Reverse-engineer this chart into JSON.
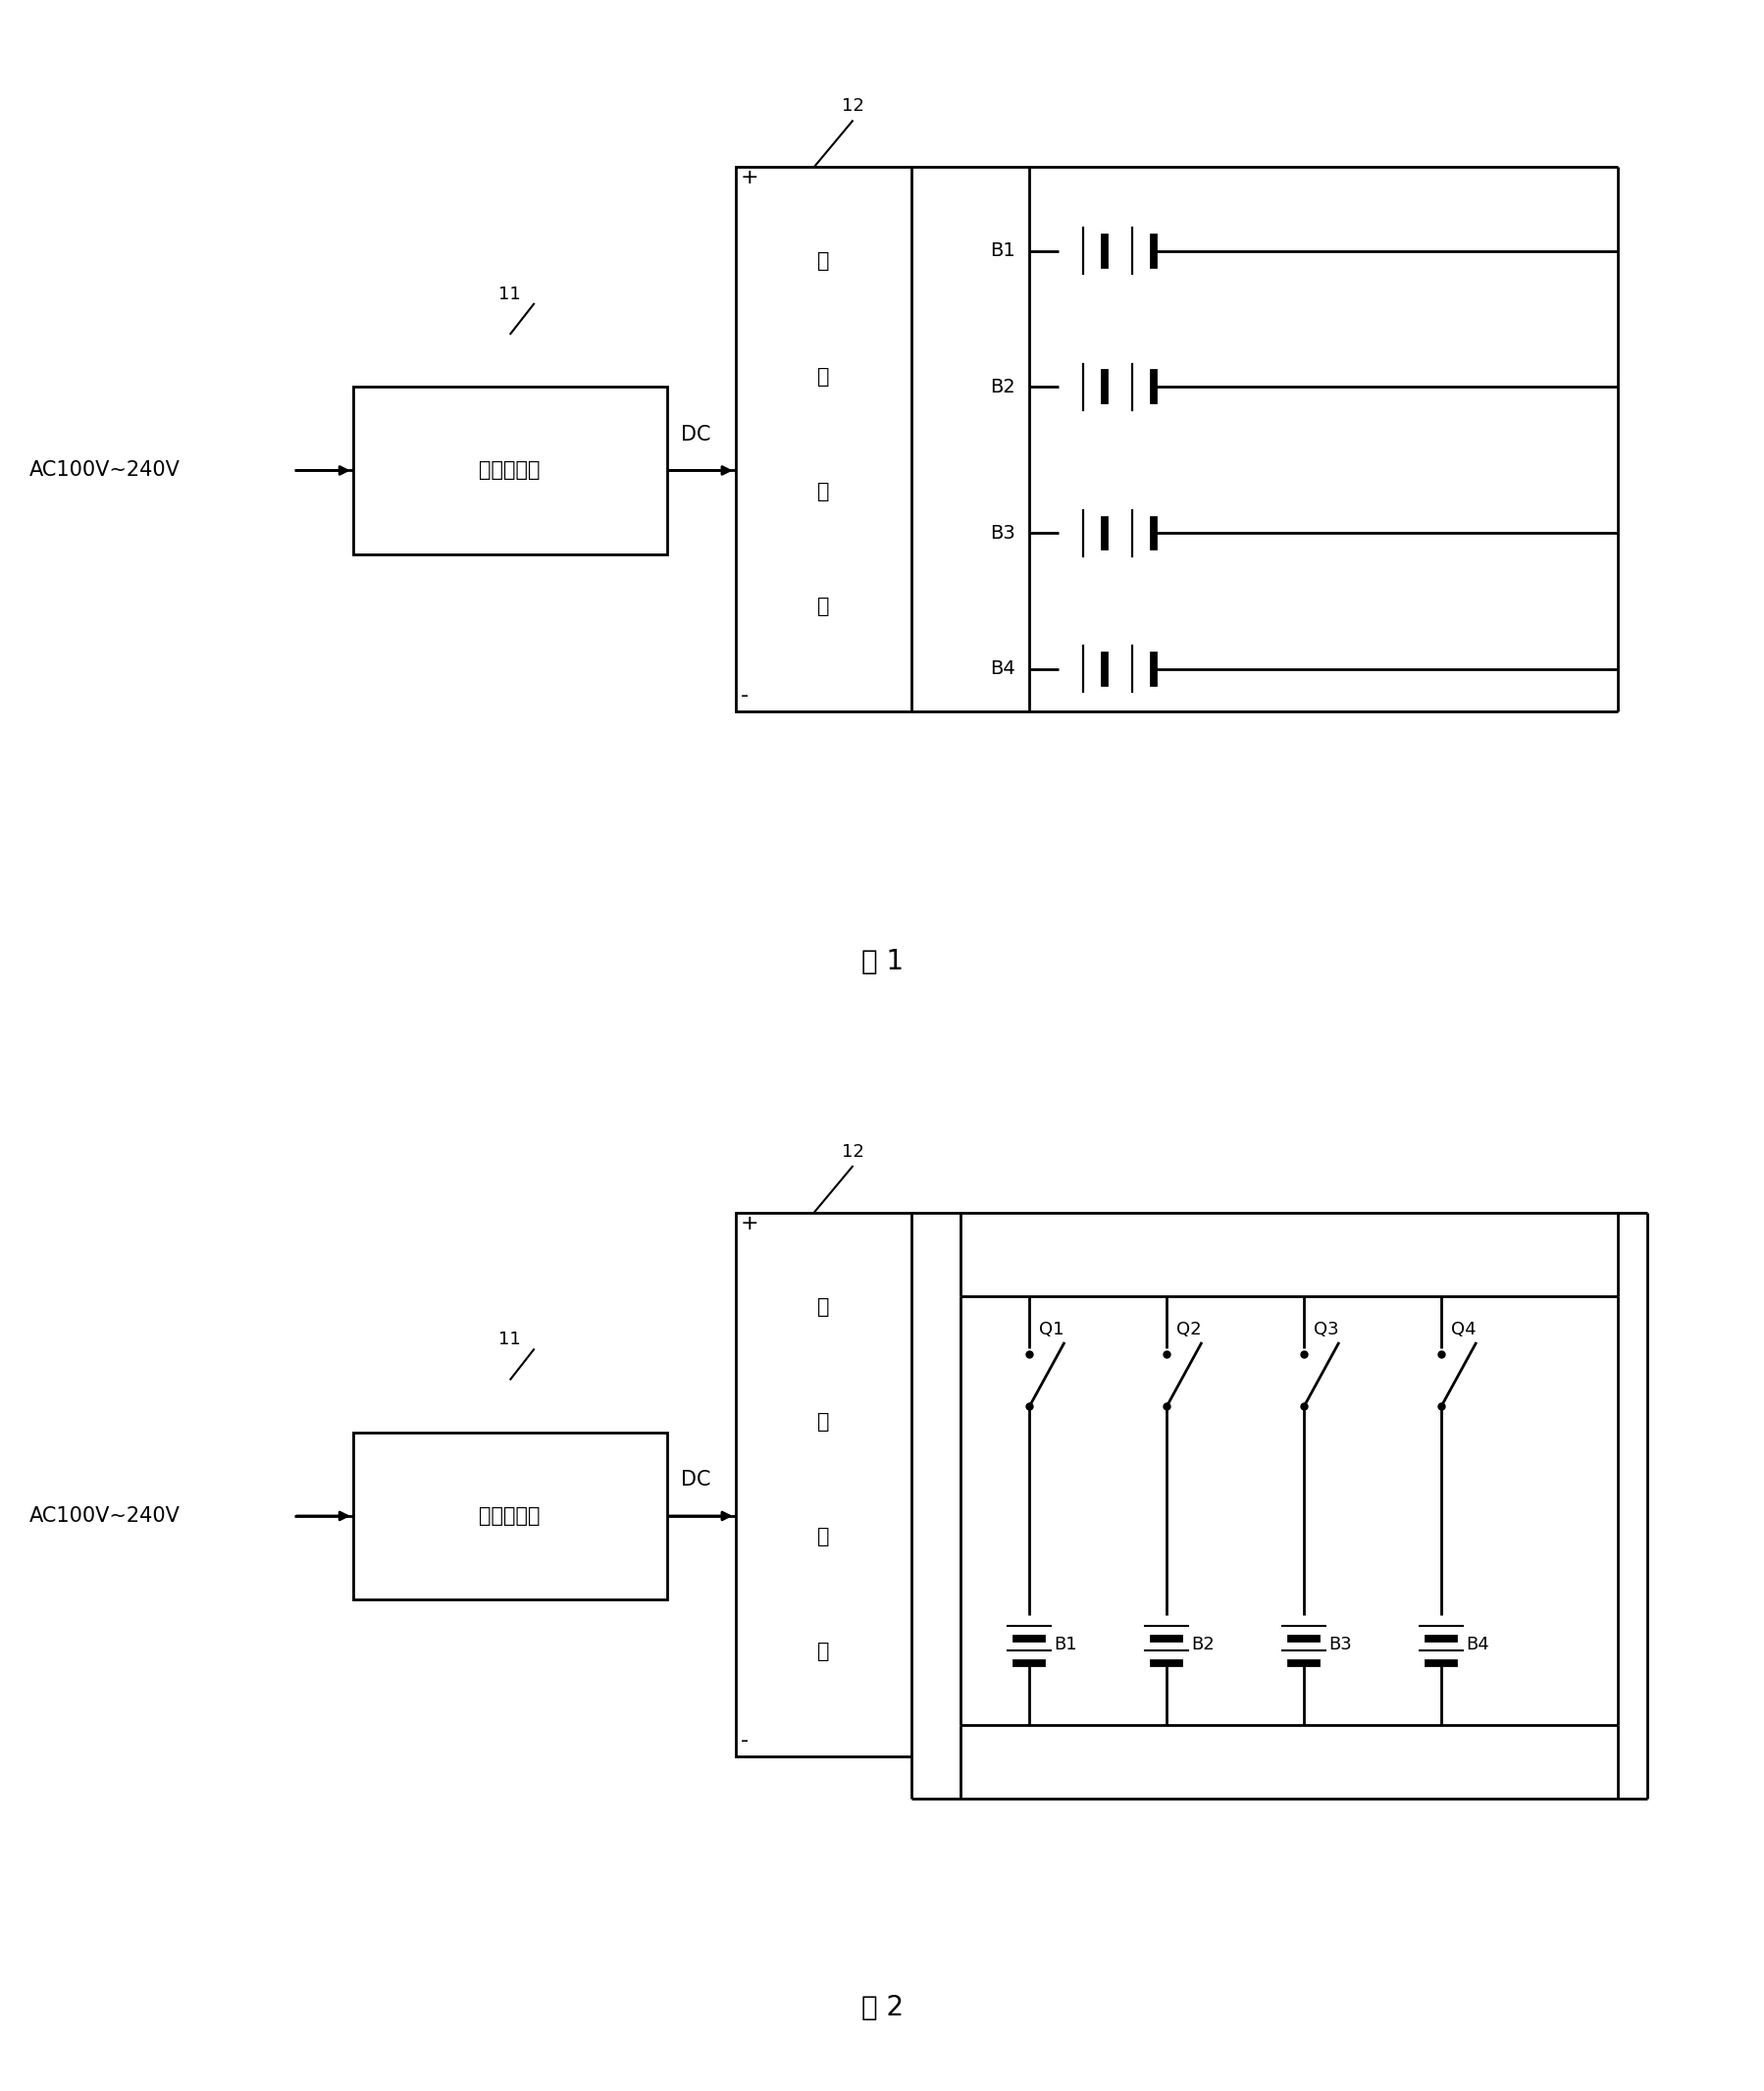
{
  "bg_color": "#ffffff",
  "line_color": "#000000",
  "fig1_caption": "图 1",
  "fig2_caption": "图 2",
  "ac_label": "AC100V~240V",
  "dc_label": "DC",
  "box1_label": "电源转换器",
  "box2_label_lines": [
    "充",
    "电",
    "电",
    "路"
  ],
  "label_11": "11",
  "label_12": "12",
  "battery_labels_fig1": [
    "B1",
    "B2",
    "B3",
    "B4"
  ],
  "battery_labels_fig2": [
    "B1",
    "B2",
    "B3",
    "B4"
  ],
  "switch_labels_fig2": [
    "Q1",
    "Q2",
    "Q3",
    "Q4"
  ]
}
